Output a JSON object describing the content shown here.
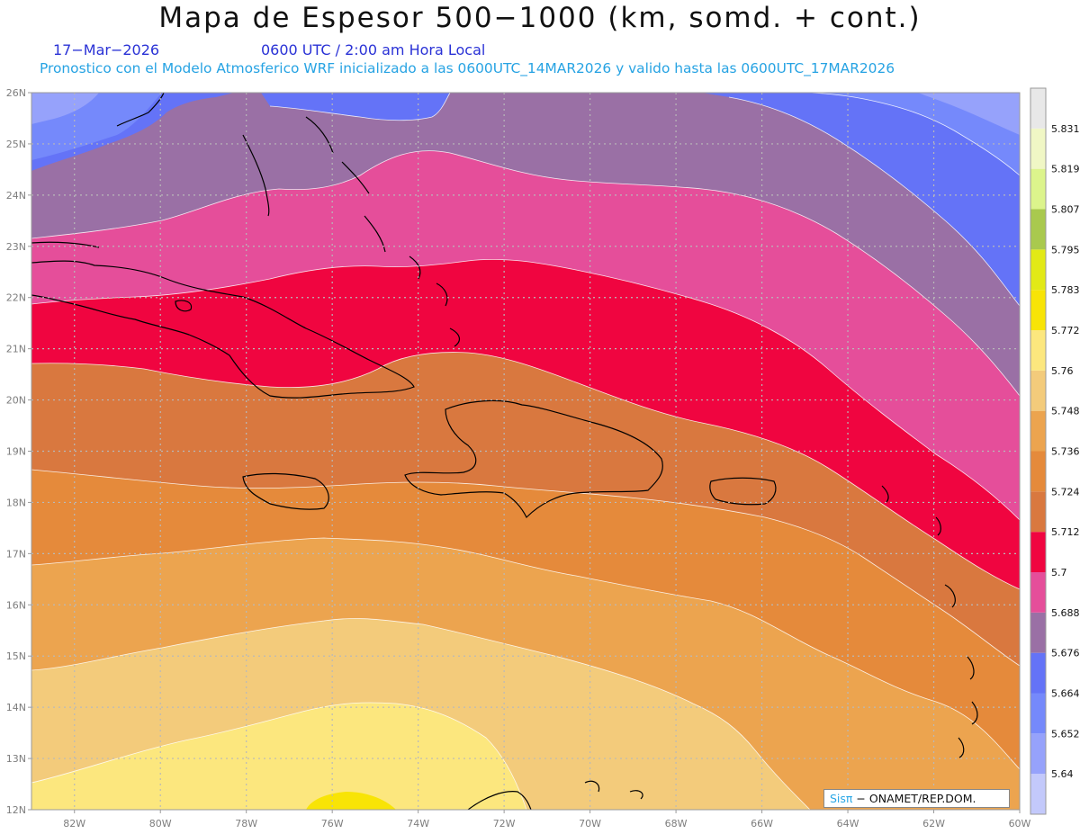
{
  "title": "Mapa de Espesor 500−1000 (km, somd. + cont.)",
  "date_label": "17−Mar−2026",
  "time_label": "0600 UTC / 2:00 am Hora Local",
  "forecast_label": "Pronostico con el Modelo Atmosferico WRF inicializado a las 0600UTC_14MAR2026 y valido hasta las  0600UTC_17MAR2026",
  "credit": {
    "brand": "Sisπ",
    "org": " − ONAMET/REP.DOM."
  },
  "map": {
    "lon_range": [
      -83,
      -60
    ],
    "lat_range": [
      12,
      26
    ],
    "lon_ticks": [
      "82W",
      "80W",
      "78W",
      "76W",
      "74W",
      "72W",
      "70W",
      "68W",
      "66W",
      "64W",
      "62W",
      "60W"
    ],
    "lat_ticks": [
      "26N",
      "25N",
      "24N",
      "23N",
      "22N",
      "21N",
      "20N",
      "19N",
      "18N",
      "17N",
      "16N",
      "15N",
      "14N",
      "13N",
      "12N"
    ]
  },
  "colorbar": {
    "labels": [
      "5.64",
      "5.652",
      "5.664",
      "5.676",
      "5.688",
      "5.7",
      "5.712",
      "5.724",
      "5.736",
      "5.748",
      "5.76",
      "5.772",
      "5.783",
      "5.795",
      "5.807",
      "5.819",
      "5.831"
    ],
    "colors": [
      "#c3c9fb",
      "#96a2fb",
      "#7589fb",
      "#6473f7",
      "#9a70a5",
      "#e54e9a",
      "#f00540",
      "#d9783f",
      "#e58a3b",
      "#eca44f",
      "#f3cb7b",
      "#fce77e",
      "#f8e406",
      "#e2e916",
      "#a9c94e",
      "#dcf48c",
      "#f0f7c5",
      "#e8e8e8"
    ]
  }
}
